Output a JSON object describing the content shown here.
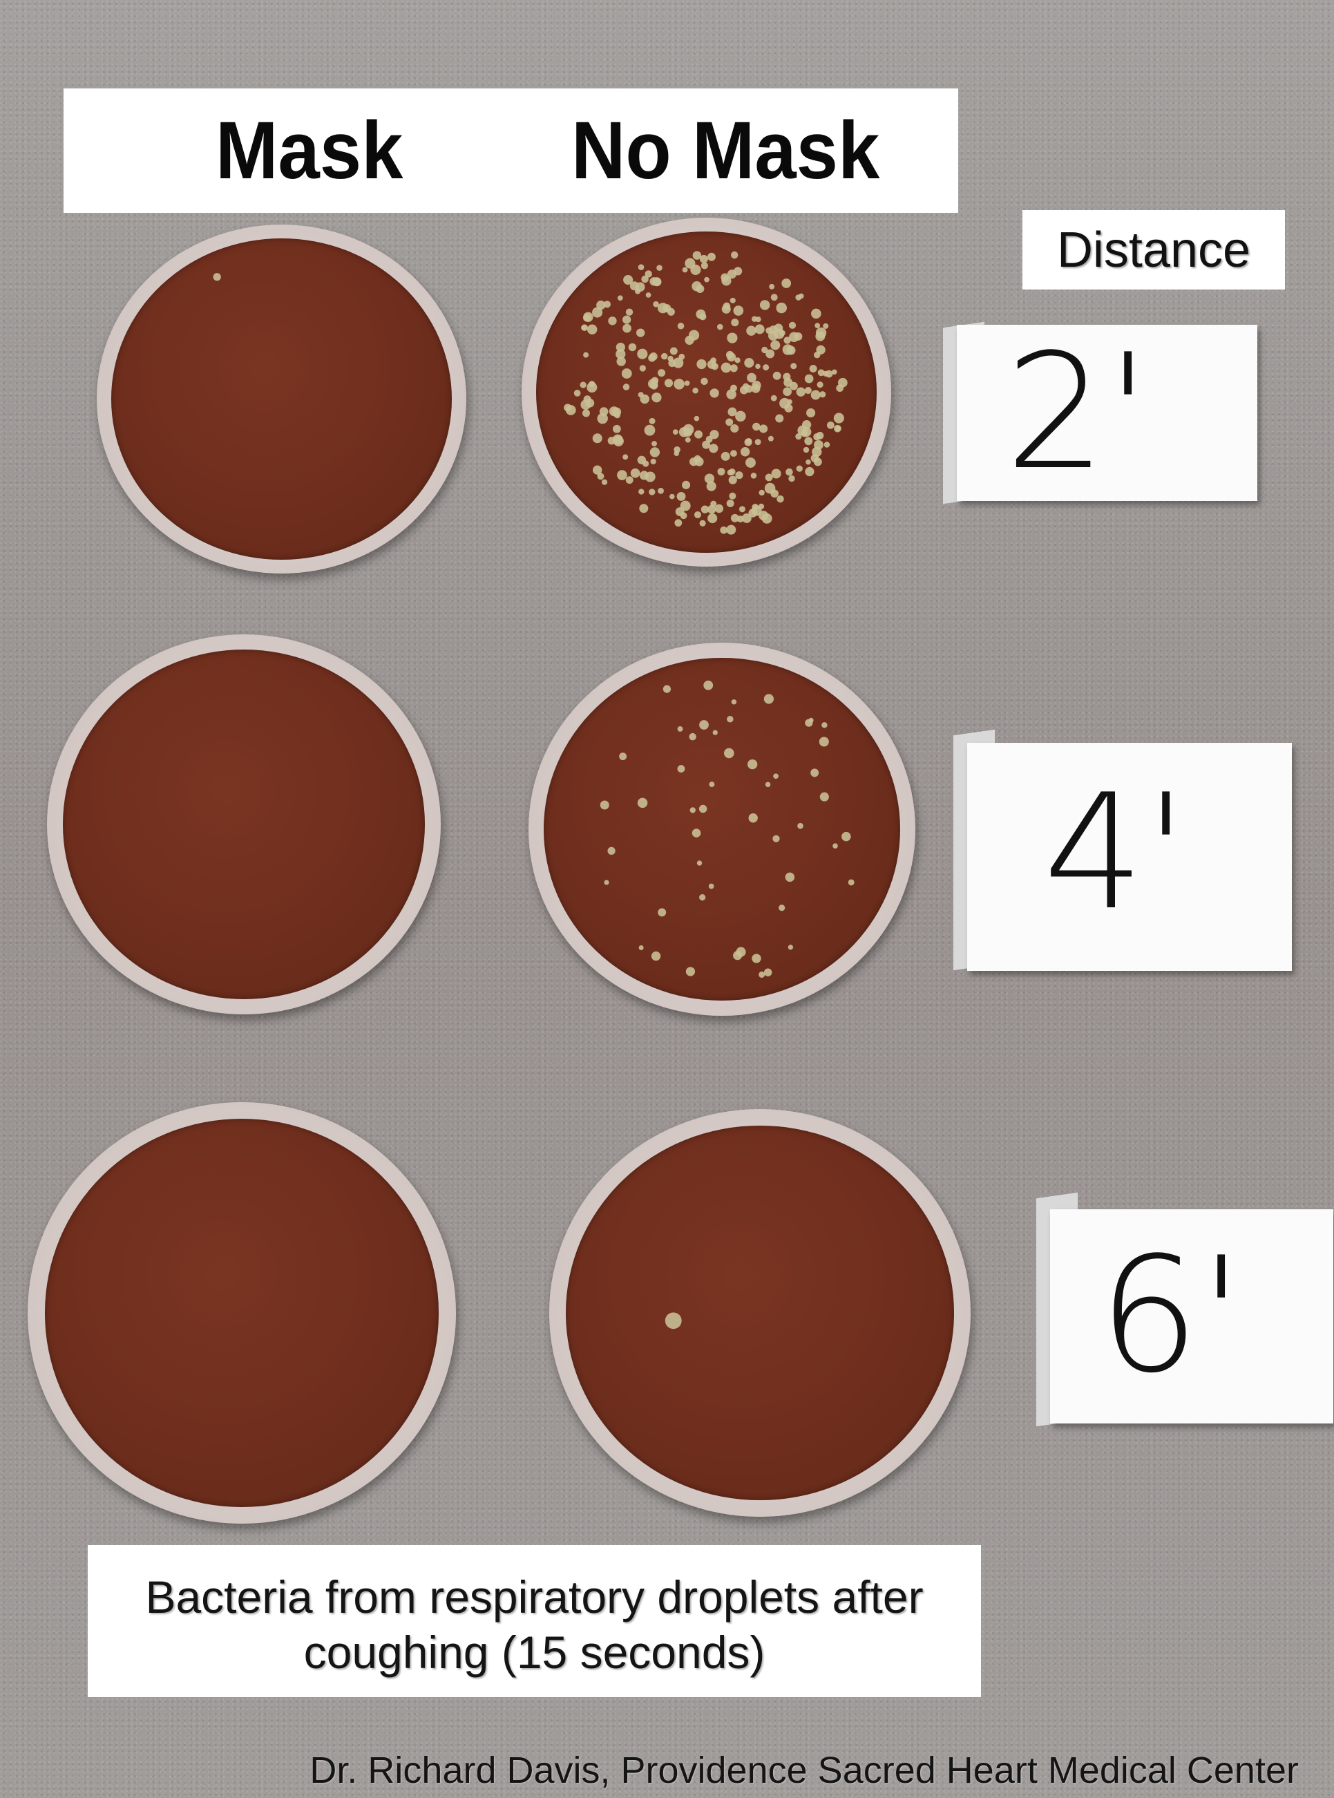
{
  "header": {
    "mask_label": "Mask",
    "no_mask_label": "No Mask"
  },
  "distance": {
    "title": "Distance",
    "rows": [
      {
        "label": "2'"
      },
      {
        "label": "4'"
      },
      {
        "label": "6'"
      }
    ]
  },
  "dishes": [
    {
      "id": "mask-2ft",
      "condition": "Mask",
      "distance": "2'",
      "colony_count": 1
    },
    {
      "id": "no-mask-2ft",
      "condition": "No Mask",
      "distance": "2'",
      "colony_count": 300
    },
    {
      "id": "mask-4ft",
      "condition": "Mask",
      "distance": "4'",
      "colony_count": 0
    },
    {
      "id": "no-mask-4ft",
      "condition": "No Mask",
      "distance": "4'",
      "colony_count": 50
    },
    {
      "id": "mask-6ft",
      "condition": "Mask",
      "distance": "6'",
      "colony_count": 0
    },
    {
      "id": "no-mask-6ft",
      "condition": "No Mask",
      "distance": "6'",
      "colony_count": 1
    }
  ],
  "caption": {
    "line1": "Bacteria from respiratory droplets after",
    "line2": "coughing (15 seconds)"
  },
  "credit": "Dr. Richard Davis, Providence Sacred Heart Medical Center",
  "colors": {
    "agar": "#6f2e1d",
    "colony": "#c9bf95",
    "surface": "#9a9795"
  }
}
